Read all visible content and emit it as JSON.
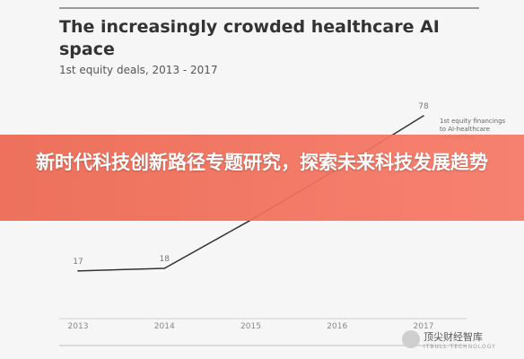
{
  "chart_data": {
    "type": "line",
    "title": "The increasingly crowded healthcare AI space",
    "subtitle": "1st equity deals, 2013 - 2017",
    "x": [
      "2013",
      "2014",
      "2015",
      "2016",
      "2017"
    ],
    "series": [
      {
        "name": "1st equity financings to AI-healthcare companies",
        "values": [
          17,
          18,
          37,
          57,
          78
        ],
        "labels": [
          "17",
          "18",
          "",
          "",
          "78"
        ],
        "color": "#333333"
      }
    ],
    "ylim": [
      0,
      90
    ],
    "grid": false
  },
  "banner": {
    "text": "新时代科技创新路径专题研究，探索未来科技发展趋势"
  },
  "watermark": {
    "text": "顶尖财经智库",
    "subtext": "ITBULL TECHNOLOGY"
  }
}
